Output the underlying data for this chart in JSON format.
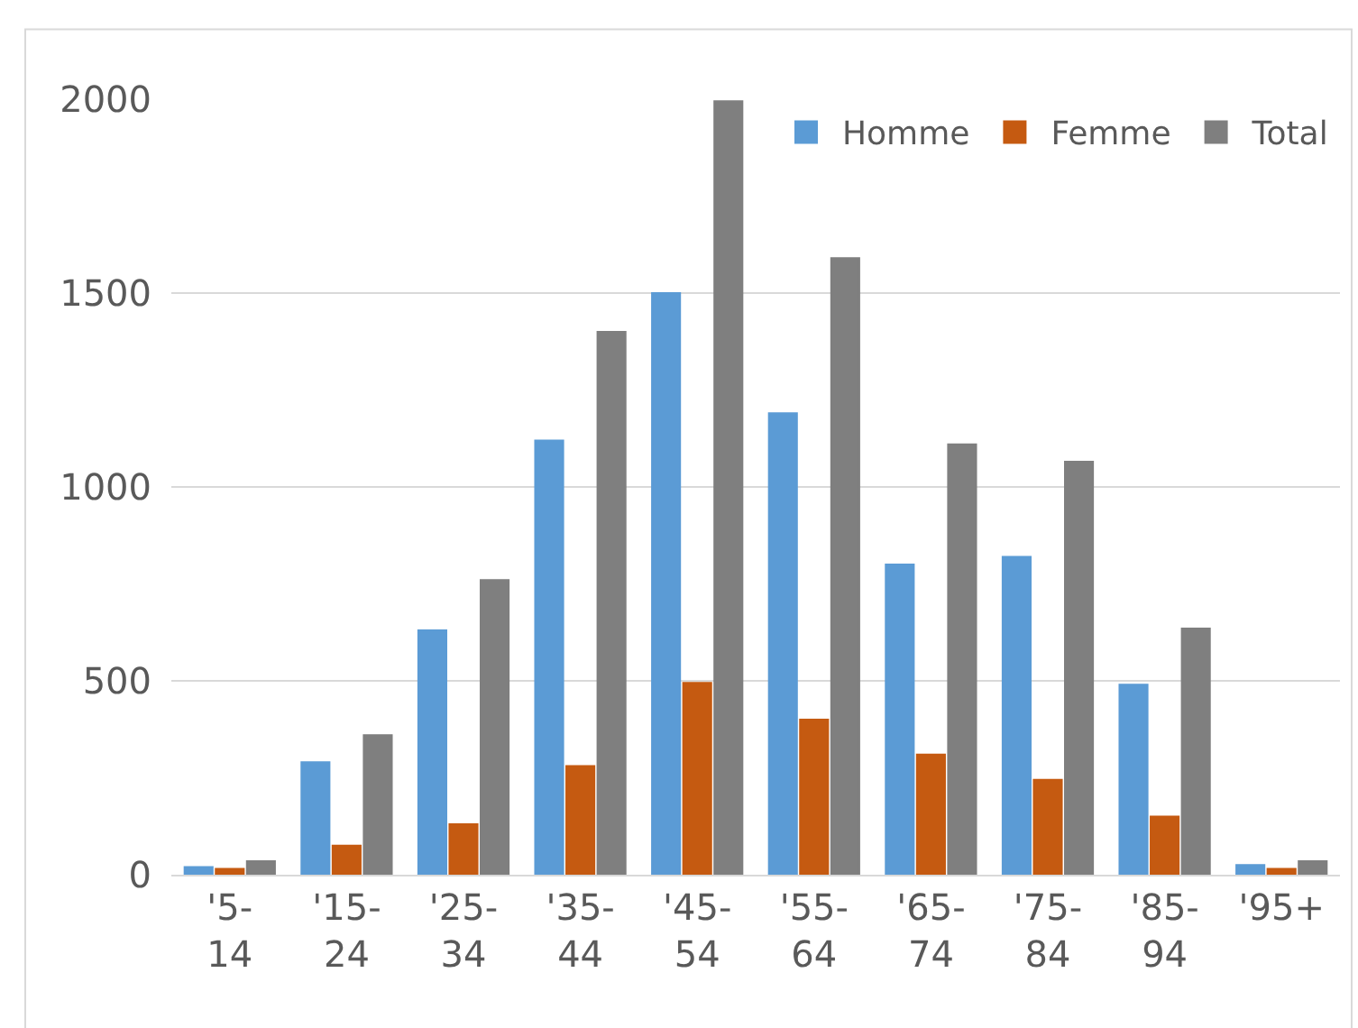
{
  "chart_data": {
    "type": "bar",
    "categories": [
      "'5-14",
      "'15-24",
      "'25-34",
      "'35-44",
      "'45-54",
      "'55-64",
      "'65-74",
      "'75-84",
      "'85-94",
      "'95+"
    ],
    "series": [
      {
        "name": "Homme",
        "color": "#5b9bd5",
        "values": [
          20,
          290,
          630,
          1120,
          1500,
          1190,
          800,
          820,
          490,
          25
        ]
      },
      {
        "name": "Femme",
        "color": "#c55a11",
        "values": [
          15,
          75,
          130,
          280,
          495,
          400,
          310,
          245,
          150,
          15
        ]
      },
      {
        "name": "Total",
        "color": "#7f7f7f",
        "values": [
          35,
          360,
          760,
          1400,
          1995,
          1590,
          1110,
          1065,
          635,
          35
        ]
      }
    ],
    "ylim": [
      0,
      2000
    ],
    "yticks": [
      0,
      500,
      1000,
      1500,
      2000
    ],
    "grid": "y",
    "legend": "top right"
  }
}
